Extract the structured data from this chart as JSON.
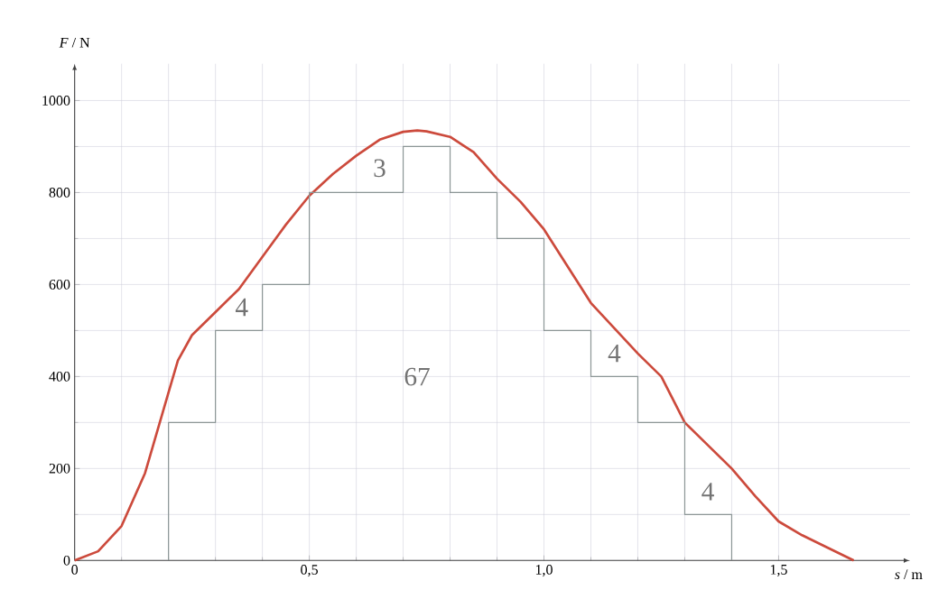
{
  "chart_data": {
    "type": "line",
    "xlabel": "*s* / m",
    "ylabel": "*F* / N",
    "xlim": [
      0,
      1.78
    ],
    "ylim": [
      0,
      1080
    ],
    "xticks": [
      0,
      {
        "value": 0.5,
        "label": "0,5"
      },
      {
        "value": 1.0,
        "label": "1,0"
      },
      {
        "value": 1.5,
        "label": "1,5"
      }
    ],
    "yticks": [
      0,
      200,
      400,
      600,
      800,
      1000
    ],
    "grid": true,
    "series": [
      {
        "color": "#cc4a3c",
        "x": [
          0,
          0.05,
          0.1,
          0.15,
          0.2,
          0.22,
          0.25,
          0.3,
          0.35,
          0.4,
          0.45,
          0.5,
          0.55,
          0.6,
          0.65,
          0.7,
          0.73,
          0.75,
          0.8,
          0.85,
          0.9,
          0.95,
          1.0,
          1.05,
          1.1,
          1.15,
          1.2,
          1.25,
          1.3,
          1.35,
          1.4,
          1.45,
          1.5,
          1.55,
          1.6,
          1.66
        ],
        "values": [
          0,
          20,
          75,
          190,
          365,
          435,
          490,
          540,
          590,
          660,
          730,
          793,
          840,
          880,
          915,
          932,
          935,
          933,
          921,
          888,
          830,
          780,
          720,
          640,
          560,
          505,
          450,
          400,
          300,
          250,
          200,
          140,
          85,
          55,
          30,
          0
        ]
      },
      {
        "type": "step",
        "color": "#8c9696",
        "x": [
          0.2,
          0.2,
          0.3,
          0.4,
          0.5,
          0.7,
          0.8,
          0.9,
          1.0,
          1.1,
          1.2,
          1.3,
          1.4
        ],
        "values": [
          0,
          300,
          500,
          600,
          800,
          900,
          800,
          700,
          500,
          400,
          300,
          100,
          0
        ]
      }
    ],
    "annotations": [
      "3",
      "4",
      "67",
      "4",
      "4"
    ]
  }
}
